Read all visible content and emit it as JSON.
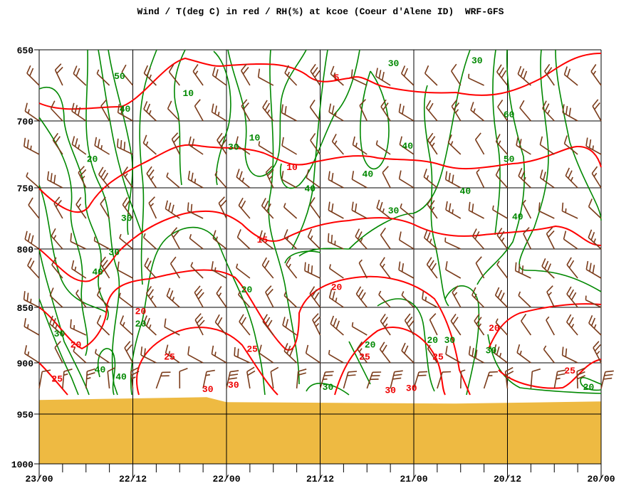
{
  "chart_data": {
    "type": "line",
    "title": "Wind / T(deg C) in red / RH(%) at kcoe (Coeur d'Alene ID)  WRF-GFS",
    "xlabel": "",
    "ylabel": "",
    "x_tick_labels": [
      "23/00",
      "22/12",
      "22/00",
      "21/12",
      "21/00",
      "20/12",
      "20/00"
    ],
    "x_range_hours_before_first": [
      0,
      72
    ],
    "y_tick_labels": [
      "650",
      "700",
      "750",
      "800",
      "850",
      "900",
      "950",
      "1000"
    ],
    "ylim": [
      650,
      1000
    ],
    "grid": true,
    "surface_pressure_hPa": 937,
    "colors": {
      "temperature": "#ff0000",
      "rh": "#008800",
      "wind": "#7a3b1a",
      "terrain": "#eeba42"
    },
    "temperature_labels": [
      {
        "text": "5",
        "h": 38.1,
        "p": 669
      },
      {
        "text": "10",
        "h": 32.4,
        "p": 734
      },
      {
        "text": "15",
        "h": 28.6,
        "p": 792
      },
      {
        "text": "20",
        "h": 38.1,
        "p": 832
      },
      {
        "text": "20",
        "h": 13.0,
        "p": 853
      },
      {
        "text": "20",
        "h": 4.7,
        "p": 883
      },
      {
        "text": "20",
        "h": 58.3,
        "p": 868
      },
      {
        "text": "25",
        "h": 2.3,
        "p": 915
      },
      {
        "text": "25",
        "h": 16.7,
        "p": 894
      },
      {
        "text": "25",
        "h": 27.3,
        "p": 887
      },
      {
        "text": "25",
        "h": 41.7,
        "p": 894
      },
      {
        "text": "25",
        "h": 51.1,
        "p": 894
      },
      {
        "text": "25",
        "h": 68.0,
        "p": 907
      },
      {
        "text": "30",
        "h": 21.6,
        "p": 925
      },
      {
        "text": "30",
        "h": 24.9,
        "p": 921
      },
      {
        "text": "30",
        "h": 45.0,
        "p": 926
      },
      {
        "text": "30",
        "h": 47.7,
        "p": 924
      }
    ],
    "rh_labels": [
      {
        "text": "50",
        "h": 10.3,
        "p": 668
      },
      {
        "text": "40",
        "h": 11.0,
        "p": 691
      },
      {
        "text": "10",
        "h": 19.1,
        "p": 680
      },
      {
        "text": "20",
        "h": 6.8,
        "p": 728
      },
      {
        "text": "30",
        "h": 11.2,
        "p": 774
      },
      {
        "text": "30",
        "h": 9.6,
        "p": 802
      },
      {
        "text": "40",
        "h": 7.5,
        "p": 819
      },
      {
        "text": "30",
        "h": 2.6,
        "p": 873
      },
      {
        "text": "40",
        "h": 7.8,
        "p": 906
      },
      {
        "text": "40",
        "h": 10.5,
        "p": 913
      },
      {
        "text": "20",
        "h": 13.0,
        "p": 859
      },
      {
        "text": "20",
        "h": 26.6,
        "p": 834
      },
      {
        "text": "10",
        "h": 27.6,
        "p": 712
      },
      {
        "text": "30",
        "h": 24.9,
        "p": 719
      },
      {
        "text": "30",
        "h": 45.4,
        "p": 659
      },
      {
        "text": "30",
        "h": 56.1,
        "p": 657
      },
      {
        "text": "60",
        "h": 60.2,
        "p": 695
      },
      {
        "text": "50",
        "h": 60.2,
        "p": 728
      },
      {
        "text": "40",
        "h": 47.2,
        "p": 718
      },
      {
        "text": "40",
        "h": 42.1,
        "p": 739
      },
      {
        "text": "40",
        "h": 34.7,
        "p": 750
      },
      {
        "text": "40",
        "h": 54.6,
        "p": 752
      },
      {
        "text": "30",
        "h": 45.4,
        "p": 768
      },
      {
        "text": "40",
        "h": 61.3,
        "p": 773
      },
      {
        "text": "20",
        "h": 42.4,
        "p": 883
      },
      {
        "text": "20",
        "h": 50.4,
        "p": 879
      },
      {
        "text": "30",
        "h": 52.6,
        "p": 879
      },
      {
        "text": "30",
        "h": 57.9,
        "p": 888
      },
      {
        "text": "30",
        "h": 37.0,
        "p": 923
      },
      {
        "text": "20",
        "h": 70.4,
        "p": 923
      }
    ]
  }
}
